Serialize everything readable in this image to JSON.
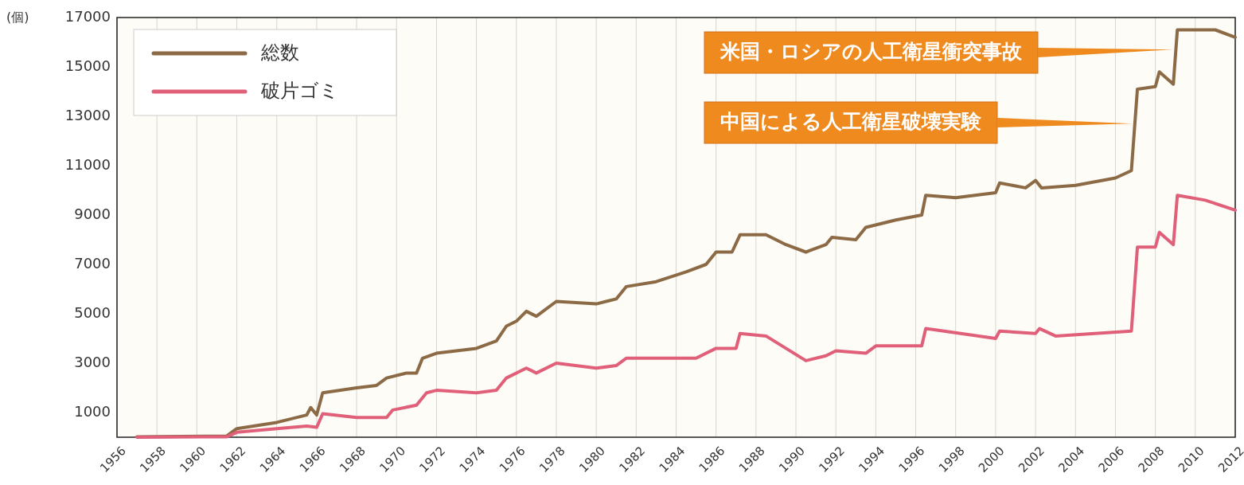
{
  "chart_data": {
    "type": "line",
    "ylabel": "(個)",
    "x": [
      1957,
      1961.5,
      1962,
      1964,
      1965.5,
      1965.7,
      1966,
      1966.3,
      1968,
      1969,
      1969.5,
      1970.5,
      1971,
      1971.3,
      1972,
      1974,
      1975,
      1975.5,
      1976,
      1976.5,
      1977,
      1978,
      1980,
      1981,
      1981.5,
      1983,
      1984.5,
      1985.5,
      1986,
      1986.8,
      1987.2,
      1988.5,
      1989.5,
      1990.5,
      1991.5,
      1991.8,
      1993,
      1993.5,
      1995,
      1996.3,
      1996.5,
      1998,
      2000,
      2000.2,
      2001.5,
      2002,
      2002.3,
      2004,
      2006,
      2006.8,
      2007.1,
      2008,
      2008.2,
      2008.9,
      2009.1,
      2011,
      2012
    ],
    "series": [
      {
        "name": "総数",
        "color": "#8b6a45",
        "values": [
          20,
          50,
          350,
          600,
          900,
          1200,
          900,
          1800,
          2000,
          2100,
          2400,
          2600,
          2600,
          3200,
          3400,
          3600,
          3900,
          4500,
          4700,
          5100,
          4900,
          5500,
          5400,
          5600,
          6100,
          6300,
          6700,
          7000,
          7500,
          7500,
          8200,
          8200,
          7800,
          7500,
          7800,
          8100,
          8000,
          8500,
          8800,
          9000,
          9800,
          9700,
          9900,
          10300,
          10100,
          10400,
          10100,
          10200,
          10500,
          10800,
          14100,
          14200,
          14800,
          14300,
          16500,
          16500,
          16200
        ]
      },
      {
        "name": "破片ゴミ",
        "color": "#e0607a",
        "x": [
          1957,
          1961.5,
          1962,
          1964,
          1965.5,
          1966,
          1966.3,
          1968,
          1969.5,
          1969.8,
          1971,
          1971.5,
          1972,
          1974,
          1975,
          1975.5,
          1976.5,
          1977,
          1978,
          1980,
          1981,
          1981.5,
          1983,
          1985,
          1986,
          1987,
          1987.2,
          1988.5,
          1990.5,
          1991.5,
          1992,
          1993.5,
          1994,
          1996.3,
          1996.5,
          2000,
          2000.2,
          2002,
          2002.2,
          2003,
          2006.8,
          2007.1,
          2008,
          2008.2,
          2008.9,
          2009.1,
          2010.5,
          2012
        ],
        "values": [
          0,
          20,
          200,
          350,
          450,
          400,
          950,
          800,
          800,
          1100,
          1300,
          1800,
          1900,
          1800,
          1900,
          2400,
          2800,
          2600,
          3000,
          2800,
          2900,
          3200,
          3200,
          3200,
          3600,
          3600,
          4200,
          4100,
          3100,
          3300,
          3500,
          3400,
          3700,
          3700,
          4400,
          4000,
          4300,
          4200,
          4400,
          4100,
          4300,
          7700,
          7700,
          8300,
          7800,
          9800,
          9600,
          9200
        ]
      }
    ],
    "xlim": [
      1956,
      2012
    ],
    "xticks": [
      1956,
      1958,
      1960,
      1962,
      1964,
      1966,
      1968,
      1970,
      1972,
      1974,
      1976,
      1978,
      1980,
      1982,
      1984,
      1986,
      1988,
      1990,
      1992,
      1994,
      1996,
      1998,
      2000,
      2002,
      2004,
      2006,
      2008,
      2010,
      2012
    ],
    "ylim": [
      0,
      17000
    ],
    "yticks": [
      1000,
      3000,
      5000,
      7000,
      9000,
      11000,
      13000,
      15000,
      17000
    ],
    "grid": "x",
    "legend": "top left",
    "annotations": [
      {
        "text": "米国・ロシアの人工衛星衝突事故",
        "x": 2009,
        "y": 15700
      },
      {
        "text": "中国による人工衛星破壊実験",
        "x": 2007,
        "y": 12700
      }
    ]
  }
}
